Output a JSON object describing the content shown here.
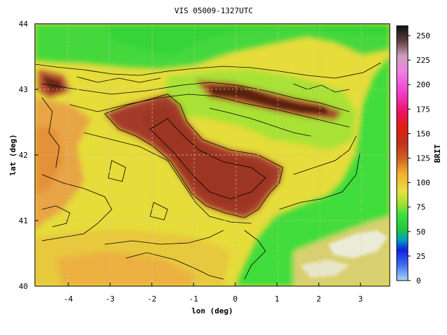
{
  "title": "VIS 05009-1327UTC",
  "xaxis": {
    "label": "lon (deg)",
    "range": [
      -4.8,
      3.7
    ],
    "ticks": [
      -4,
      -3,
      -2,
      -1,
      0,
      1,
      2,
      3
    ]
  },
  "yaxis": {
    "label": "lat (deg)",
    "range": [
      40,
      44
    ],
    "ticks": [
      40,
      41,
      42,
      43,
      44
    ]
  },
  "colorbar": {
    "label": "BRIT",
    "range": [
      0,
      260
    ],
    "ticks": [
      0,
      25,
      50,
      75,
      100,
      125,
      150,
      175,
      200,
      225,
      250
    ]
  },
  "grid": "dashed",
  "colors": {
    "lowlands_green": "#3fd83f",
    "mid_yellow": "#e6e23a",
    "orange": "#e8a040",
    "ebro_brown": "#a0382a",
    "pyrenees_dark": "#6a2a1a",
    "contour": "#000000"
  }
}
